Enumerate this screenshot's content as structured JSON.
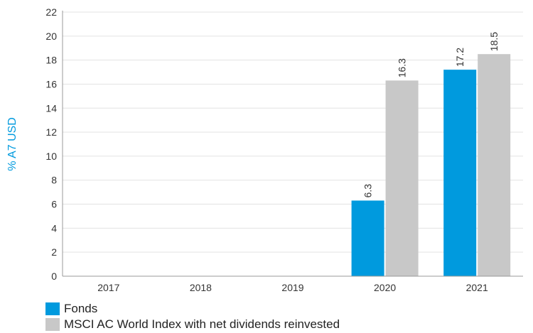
{
  "chart_data": {
    "type": "bar",
    "categories": [
      "2017",
      "2018",
      "2019",
      "2020",
      "2021"
    ],
    "series": [
      {
        "name": "Fonds",
        "color": "#009ade",
        "values": [
          null,
          null,
          null,
          6.3,
          17.2
        ]
      },
      {
        "name": "MSCI AC World Index with net dividends reinvested",
        "color": "#c8c8c8",
        "values": [
          null,
          null,
          null,
          16.3,
          18.5
        ]
      }
    ],
    "data_labels": [
      [
        "",
        "",
        "",
        "6.3",
        "17.2"
      ],
      [
        "",
        "",
        "",
        "16.3",
        "18.5"
      ]
    ],
    "ylabel": "% A7 USD",
    "ylabel_color": "#009ade",
    "ylim": [
      0,
      22
    ],
    "yticks": [
      "0",
      "2",
      "4",
      "6",
      "8",
      "10",
      "12",
      "14",
      "16",
      "18",
      "20",
      "22"
    ],
    "grid": true,
    "legend_position": "bottom-left"
  }
}
